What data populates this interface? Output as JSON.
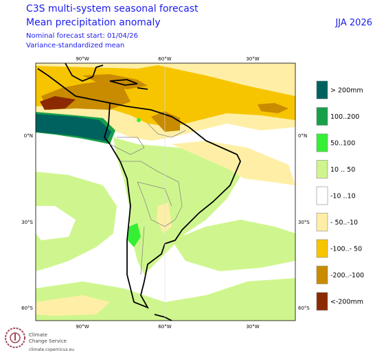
{
  "header": {
    "title_line1": "C3S multi-system seasonal forecast",
    "title_line2": "Mean precipitation anomaly",
    "subtitle_line1": "Nominal forecast start: 01/04/26",
    "subtitle_line2": "Variance-standardized mean",
    "season": "JJA 2026"
  },
  "map": {
    "lon_labels": [
      "90°W",
      "60°W",
      "30°W"
    ],
    "lat_labels": [
      "0°N",
      "30°S",
      "60°S"
    ]
  },
  "legend": {
    "items": [
      {
        "label": "> 200mm",
        "color": "#00625e"
      },
      {
        "label": "100..200",
        "color": "#17a049"
      },
      {
        "label": "50..100",
        "color": "#35ef35"
      },
      {
        "label": "10 .. 50",
        "color": "#cff68e"
      },
      {
        "label": "-10 ..10",
        "color": "#ffffff"
      },
      {
        "label": "- 50..-10",
        "color": "#ffefa6"
      },
      {
        "label": "-100..- 50",
        "color": "#f6c500"
      },
      {
        "label": "-200..-100",
        "color": "#c98b00"
      },
      {
        "label": "<-200mm",
        "color": "#8b2a00"
      }
    ]
  },
  "footer": {
    "logo_line1": "Climate",
    "logo_line2": "Change Service",
    "url": "climate.copernicus.eu"
  }
}
